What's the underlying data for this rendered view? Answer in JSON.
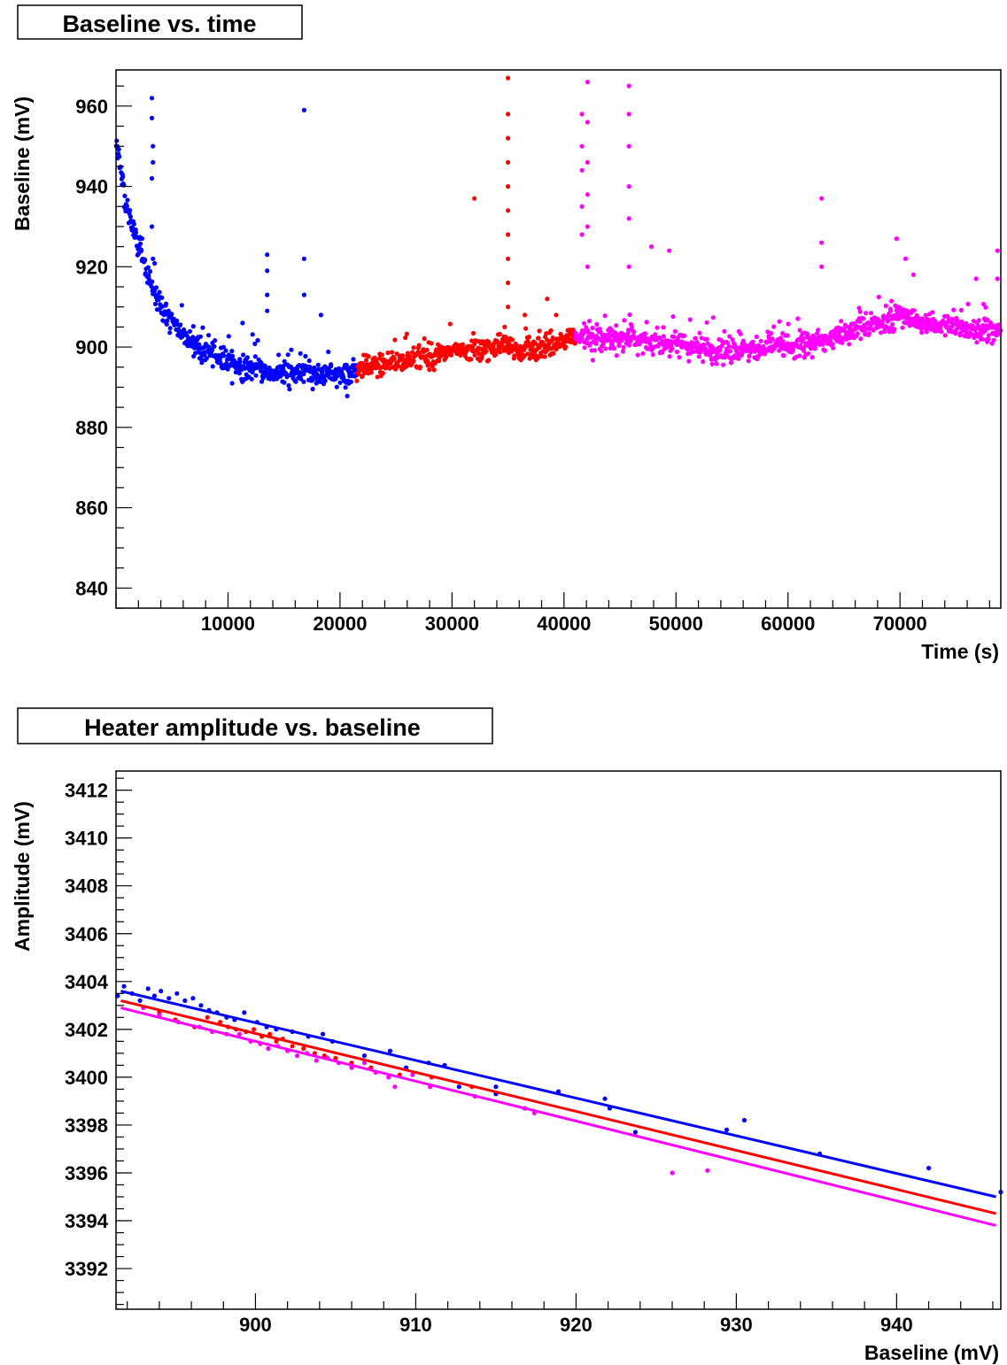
{
  "chart_data": [
    {
      "type": "scatter",
      "title": "Baseline vs. time",
      "xlabel": "Time (s)",
      "ylabel": "Baseline (mV)",
      "xlim": [
        0,
        79000
      ],
      "ylim": [
        835,
        969
      ],
      "xticks": [
        10000,
        20000,
        30000,
        40000,
        50000,
        60000,
        70000
      ],
      "xtick_labels": [
        "10000",
        "20000",
        "30000",
        "40000",
        "50000",
        "60000",
        "70000"
      ],
      "yticks": [
        840,
        860,
        880,
        900,
        920,
        940,
        960
      ],
      "ytick_labels": [
        "840",
        "860",
        "880",
        "900",
        "920",
        "940",
        "960"
      ],
      "grid": false,
      "series": [
        {
          "color": "#0000ff",
          "segment": [
            0,
            21500
          ],
          "trend": [
            [
              0,
              952
            ],
            [
              1000,
              934
            ],
            [
              2000,
              925
            ],
            [
              3000,
              917
            ],
            [
              4000,
              910
            ],
            [
              5000,
              906
            ],
            [
              6000,
              903
            ],
            [
              8000,
              899
            ],
            [
              10000,
              896
            ],
            [
              12000,
              894.5
            ],
            [
              14000,
              893.5
            ],
            [
              16000,
              893.5
            ],
            [
              18000,
              893
            ],
            [
              20000,
              893
            ],
            [
              21500,
              894
            ]
          ],
          "outliers": [
            [
              3200,
              962
            ],
            [
              3200,
              957
            ],
            [
              3300,
              950
            ],
            [
              3300,
              946
            ],
            [
              3200,
              942
            ],
            [
              3200,
              930
            ],
            [
              3300,
              922
            ],
            [
              13500,
              923
            ],
            [
              13500,
              919
            ],
            [
              13500,
              913
            ],
            [
              13500,
              909
            ],
            [
              16800,
              959
            ],
            [
              16800,
              922
            ],
            [
              16800,
              913
            ],
            [
              18300,
              908
            ],
            [
              11300,
              906
            ]
          ]
        },
        {
          "color": "#ff0000",
          "segment": [
            21500,
            41000
          ],
          "trend": [
            [
              21500,
              894
            ],
            [
              24000,
              896
            ],
            [
              27000,
              897.5
            ],
            [
              30000,
              898.5
            ],
            [
              33000,
              899.5
            ],
            [
              35000,
              900
            ],
            [
              36000,
              899
            ],
            [
              38000,
              900
            ],
            [
              40000,
              901.5
            ],
            [
              41000,
              902
            ]
          ],
          "outliers": [
            [
              32000,
              937
            ],
            [
              35000,
              967
            ],
            [
              35000,
              958
            ],
            [
              35000,
              952
            ],
            [
              35000,
              946
            ],
            [
              35000,
              940
            ],
            [
              35000,
              934
            ],
            [
              35000,
              928
            ],
            [
              35000,
              922
            ],
            [
              35000,
              916
            ],
            [
              35000,
              910
            ],
            [
              34700,
              905
            ],
            [
              36500,
              908
            ],
            [
              38500,
              912
            ],
            [
              39300,
              908
            ],
            [
              37800,
              904
            ]
          ]
        },
        {
          "color": "#ff00ff",
          "segment": [
            41000,
            79000
          ],
          "trend": [
            [
              41000,
              902
            ],
            [
              45000,
              902
            ],
            [
              50000,
              901
            ],
            [
              53000,
              899
            ],
            [
              56000,
              899
            ],
            [
              60000,
              900
            ],
            [
              63000,
              901.5
            ],
            [
              66000,
              904
            ],
            [
              68000,
              906
            ],
            [
              70000,
              908
            ],
            [
              72000,
              906
            ],
            [
              75000,
              905
            ],
            [
              79000,
              904
            ]
          ],
          "outliers": [
            [
              41600,
              958
            ],
            [
              41600,
              950
            ],
            [
              41600,
              944
            ],
            [
              41600,
              935
            ],
            [
              41600,
              928
            ],
            [
              42100,
              966
            ],
            [
              42100,
              956
            ],
            [
              42100,
              946
            ],
            [
              42100,
              938
            ],
            [
              42100,
              930
            ],
            [
              42100,
              920
            ],
            [
              45800,
              965
            ],
            [
              45800,
              958
            ],
            [
              45800,
              950
            ],
            [
              45800,
              940
            ],
            [
              45800,
              932
            ],
            [
              45800,
              920
            ],
            [
              47800,
              925
            ],
            [
              49400,
              924
            ],
            [
              63000,
              937
            ],
            [
              63000,
              926
            ],
            [
              63000,
              920
            ],
            [
              69700,
              927
            ],
            [
              70500,
              922
            ],
            [
              71200,
              918
            ],
            [
              76800,
              917
            ],
            [
              78700,
              924
            ],
            [
              78700,
              917
            ]
          ]
        }
      ]
    },
    {
      "type": "scatter",
      "title": "Heater amplitude vs. baseline",
      "xlabel": "Baseline (mV)",
      "ylabel": "Amplitude (mV)",
      "xlim": [
        891.3,
        946.5
      ],
      "ylim": [
        3390.3,
        3412.8
      ],
      "xticks": [
        900,
        910,
        920,
        930,
        940
      ],
      "xtick_labels": [
        "900",
        "910",
        "920",
        "930",
        "940"
      ],
      "yticks": [
        3392,
        3394,
        3396,
        3398,
        3400,
        3402,
        3404,
        3406,
        3408,
        3410,
        3412
      ],
      "ytick_labels": [
        "3392",
        "3394",
        "3396",
        "3398",
        "3400",
        "3402",
        "3404",
        "3406",
        "3408",
        "3410",
        "3412"
      ],
      "grid": false,
      "series": [
        {
          "color": "#0000ff",
          "fit": [
            [
              891.6,
              3403.6
            ],
            [
              946.2,
              3395.0
            ]
          ],
          "points": [
            [
              891.4,
              3403.4
            ],
            [
              891.8,
              3403.8
            ],
            [
              892.3,
              3403.5
            ],
            [
              892.8,
              3403.2
            ],
            [
              893.3,
              3403.7
            ],
            [
              893.7,
              3403.4
            ],
            [
              894.1,
              3403.6
            ],
            [
              894.6,
              3403.3
            ],
            [
              895.1,
              3403.5
            ],
            [
              895.6,
              3403.2
            ],
            [
              896.1,
              3403.3
            ],
            [
              896.6,
              3403.0
            ],
            [
              897.1,
              3402.8
            ],
            [
              897.6,
              3402.7
            ],
            [
              898.2,
              3402.5
            ],
            [
              898.7,
              3402.4
            ],
            [
              899.3,
              3402.7
            ],
            [
              900.1,
              3402.3
            ],
            [
              900.7,
              3402.1
            ],
            [
              901.3,
              3402.0
            ],
            [
              902.3,
              3401.9
            ],
            [
              903.3,
              3401.7
            ],
            [
              904.2,
              3401.8
            ],
            [
              904.8,
              3401.5
            ],
            [
              906.8,
              3400.9
            ],
            [
              908.4,
              3401.1
            ],
            [
              909.4,
              3400.4
            ],
            [
              910.8,
              3400.6
            ],
            [
              911.8,
              3400.5
            ],
            [
              912.7,
              3399.6
            ],
            [
              915.0,
              3399.6
            ],
            [
              915.0,
              3399.3
            ],
            [
              918.9,
              3399.4
            ],
            [
              921.8,
              3399.1
            ],
            [
              922.1,
              3398.7
            ],
            [
              923.7,
              3397.7
            ],
            [
              929.4,
              3397.8
            ],
            [
              930.5,
              3398.2
            ],
            [
              935.2,
              3396.8
            ],
            [
              942.0,
              3396.2
            ],
            [
              946.5,
              3395.2
            ]
          ]
        },
        {
          "color": "#ff0000",
          "fit": [
            [
              891.6,
              3403.2
            ],
            [
              946.2,
              3394.3
            ]
          ],
          "points": [
            [
              894.0,
              3402.7
            ],
            [
              895.0,
              3402.4
            ],
            [
              896.2,
              3402.1
            ],
            [
              897.0,
              3402.5
            ],
            [
              897.8,
              3402.3
            ],
            [
              898.3,
              3402.1
            ],
            [
              898.8,
              3402.0
            ],
            [
              899.4,
              3401.9
            ],
            [
              899.9,
              3402.0
            ],
            [
              900.4,
              3401.7
            ],
            [
              900.9,
              3401.8
            ],
            [
              901.3,
              3401.5
            ],
            [
              901.7,
              3401.6
            ],
            [
              902.3,
              3401.3
            ],
            [
              903.0,
              3401.2
            ],
            [
              903.7,
              3401.0
            ],
            [
              904.3,
              3400.9
            ],
            [
              905.0,
              3400.8
            ],
            [
              906.0,
              3400.6
            ],
            [
              907.2,
              3400.4
            ],
            [
              909.0,
              3400.1
            ],
            [
              911.0,
              3400.0
            ],
            [
              913.5,
              3399.6
            ]
          ]
        },
        {
          "color": "#ff00ff",
          "fit": [
            [
              891.6,
              3402.9
            ],
            [
              946.2,
              3393.8
            ]
          ],
          "points": [
            [
              893.0,
              3402.9
            ],
            [
              894.0,
              3402.6
            ],
            [
              895.2,
              3402.3
            ],
            [
              896.5,
              3402.1
            ],
            [
              897.3,
              3401.9
            ],
            [
              898.2,
              3401.8
            ],
            [
              899.0,
              3401.8
            ],
            [
              899.7,
              3401.5
            ],
            [
              900.3,
              3401.4
            ],
            [
              900.8,
              3401.2
            ],
            [
              901.4,
              3401.3
            ],
            [
              902.0,
              3401.1
            ],
            [
              902.6,
              3400.9
            ],
            [
              903.2,
              3401.0
            ],
            [
              903.8,
              3400.7
            ],
            [
              904.5,
              3400.8
            ],
            [
              905.2,
              3400.6
            ],
            [
              906.0,
              3400.4
            ],
            [
              906.8,
              3400.6
            ],
            [
              907.5,
              3400.2
            ],
            [
              908.3,
              3400.0
            ],
            [
              908.7,
              3399.6
            ],
            [
              909.8,
              3400.1
            ],
            [
              910.9,
              3399.6
            ],
            [
              913.7,
              3399.2
            ],
            [
              916.8,
              3398.7
            ],
            [
              917.4,
              3398.5
            ],
            [
              926.0,
              3396.0
            ],
            [
              928.2,
              3396.1
            ]
          ]
        }
      ]
    }
  ]
}
